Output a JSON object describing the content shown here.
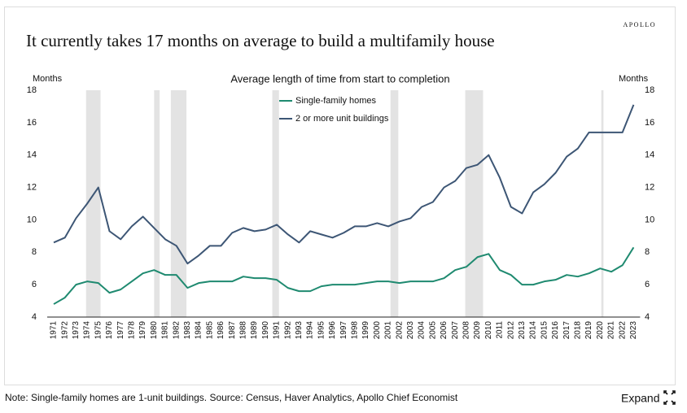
{
  "chart_data": {
    "type": "line",
    "brand": "APOLLO",
    "title": "It currently takes 17 months on average to build a multifamily house",
    "subtitle": "Average length of time from start to completion",
    "y_label": "Months",
    "y2_label": "Months",
    "categories": [
      "1971",
      "1972",
      "1973",
      "1974",
      "1975",
      "1976",
      "1977",
      "1978",
      "1979",
      "1980",
      "1981",
      "1982",
      "1983",
      "1984",
      "1985",
      "1986",
      "1987",
      "1988",
      "1989",
      "1990",
      "1991",
      "1992",
      "1993",
      "1994",
      "1995",
      "1996",
      "1997",
      "1998",
      "1999",
      "2000",
      "2001",
      "2002",
      "2003",
      "2004",
      "2005",
      "2006",
      "2007",
      "2008",
      "2009",
      "2010",
      "2011",
      "2012",
      "2013",
      "2014",
      "2015",
      "2016",
      "2017",
      "2018",
      "2019",
      "2020",
      "2021",
      "2022",
      "2023"
    ],
    "series": [
      {
        "name": "Single-family homes",
        "color": "#1f8a70",
        "values": [
          4.8,
          5.2,
          6.0,
          6.2,
          6.1,
          5.5,
          5.7,
          6.2,
          6.7,
          6.9,
          6.6,
          6.6,
          5.8,
          6.1,
          6.2,
          6.2,
          6.2,
          6.5,
          6.4,
          6.4,
          6.3,
          5.8,
          5.6,
          5.6,
          5.9,
          6.0,
          6.0,
          6.0,
          6.1,
          6.2,
          6.2,
          6.1,
          6.2,
          6.2,
          6.2,
          6.4,
          6.9,
          7.1,
          7.7,
          7.9,
          6.9,
          6.6,
          6.0,
          6.0,
          6.2,
          6.3,
          6.6,
          6.5,
          6.7,
          7.0,
          6.8,
          7.2,
          8.3
        ]
      },
      {
        "name": "2 or more unit buildings",
        "color": "#3d5675",
        "values": [
          8.6,
          8.9,
          10.1,
          11.0,
          12.0,
          9.3,
          8.8,
          9.6,
          10.2,
          9.5,
          8.8,
          8.4,
          7.3,
          7.8,
          8.4,
          8.4,
          9.2,
          9.5,
          9.3,
          9.4,
          9.7,
          9.1,
          8.6,
          9.3,
          9.1,
          8.9,
          9.2,
          9.6,
          9.6,
          9.8,
          9.6,
          9.9,
          10.1,
          10.8,
          11.1,
          12.0,
          12.4,
          13.2,
          13.4,
          14.0,
          12.6,
          10.8,
          10.4,
          11.7,
          12.2,
          12.9,
          13.9,
          14.4,
          15.4,
          15.4,
          15.4,
          15.4,
          17.1
        ]
      }
    ],
    "recessions": [
      [
        1973.9,
        1975.2
      ],
      [
        1980.0,
        1980.5
      ],
      [
        1981.5,
        1982.9
      ],
      [
        1990.6,
        1991.2
      ],
      [
        2001.2,
        2001.9
      ],
      [
        2007.9,
        2009.5
      ],
      [
        2020.1,
        2020.3
      ]
    ],
    "recession_color": "#e3e3e3",
    "ylim": [
      4,
      18
    ],
    "yticks": [
      4,
      6,
      8,
      10,
      12,
      14,
      16,
      18
    ],
    "y2lim": [
      4,
      18
    ],
    "y2ticks": [
      4,
      6,
      8,
      10,
      12,
      14,
      16,
      18
    ],
    "grid": false,
    "note": "Note: Single-family homes are 1-unit buildings. Source: Census, Haver Analytics, Apollo Chief Economist",
    "expand": "Expand"
  }
}
